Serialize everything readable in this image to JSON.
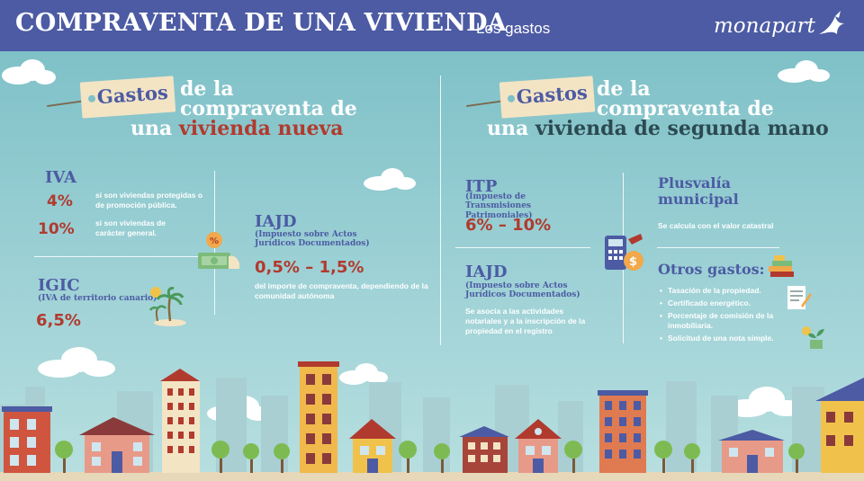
{
  "header": {
    "title": "COMPRAVENTA DE UNA VIVIENDA",
    "subtitle": "Los gastos",
    "logo": "monapart"
  },
  "left": {
    "tag": "Gastos",
    "title_line1": "de la",
    "title_line2": "compraventa de",
    "title_line3_prefix": "una ",
    "title_line3_highlight": "vivienda nueva",
    "iva": {
      "heading": "IVA",
      "rate1": "4%",
      "note1": "si son viviendas protegidas o de promoción pública.",
      "rate2": "10%",
      "note2": "si son viviendas de carácter general."
    },
    "igic": {
      "heading": "IGIC",
      "subheading": "(IVA de territorio canario)",
      "rate": "6,5%"
    },
    "iajd": {
      "heading": "IAJD",
      "subheading": "(Impuesto sobre Actos Jurídicos Documentados)",
      "rate": "0,5% – 1,5%",
      "note": "del importe de compraventa, dependiendo de la comunidad autónoma"
    }
  },
  "right": {
    "tag": "Gastos",
    "title_line1": "de la",
    "title_line2": "compraventa de",
    "title_line3_prefix": "una ",
    "title_line3_highlight": "vivienda de segunda mano",
    "itp": {
      "heading": "ITP",
      "subheading": "(Impuesto de Transmisiones Patrimoniales)",
      "rate": "6% – 10%"
    },
    "iajd": {
      "heading": "IAJD",
      "subheading": "(Impuesto sobre Actos Jurídicos Documentados)",
      "note": "Se asocia a las actividades notariales y a la inscripción de la propiedad en el registro"
    },
    "plusvalia": {
      "heading": "Plusvalía municipal",
      "note": "Se calcula con el valor catastral"
    },
    "otros": {
      "heading": "Otros gastos:",
      "items": [
        "Tasación de la propiedad.",
        "Certificado energético.",
        "Porcentaje de comisión de la inmobiliaria.",
        "Solicitud de una nota simple."
      ]
    }
  },
  "colors": {
    "header_bg": "#4c5ba3",
    "sky": "#9dd0d4",
    "accent_red": "#b13a2e",
    "accent_blue": "#4c5ba3",
    "tag_bg": "#f3e4c4"
  },
  "icons": [
    "bird-icon",
    "cloud-icon",
    "money-percent-icon",
    "palm-tree-icon",
    "calculator-coin-icon",
    "money-stack-icon",
    "document-pen-icon",
    "plant-coins-icon"
  ]
}
